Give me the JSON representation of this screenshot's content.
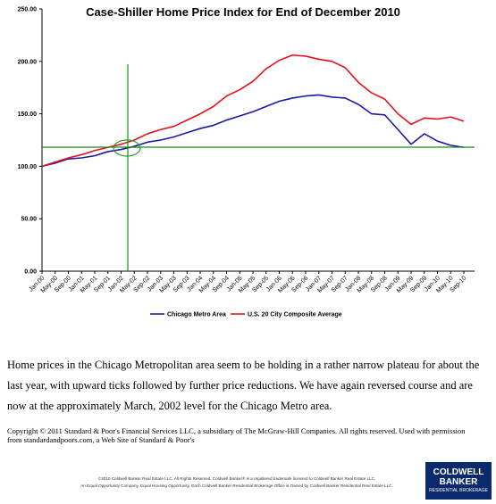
{
  "chart_data": {
    "type": "line",
    "title": "Case-Shiller Home Price Index for End of December 2010",
    "categories": [
      "Jan-00",
      "May-00",
      "Sep-00",
      "Jan-01",
      "May-01",
      "Sep-01",
      "Jan-02",
      "May-02",
      "Sep-02",
      "Jan-03",
      "May-03",
      "Sep-03",
      "Jan-04",
      "May-04",
      "Sep-04",
      "Jan-05",
      "May-05",
      "Sep-05",
      "Jan-06",
      "May-06",
      "Sep-06",
      "Jan-07",
      "May-07",
      "Sep-07",
      "Jan-08",
      "May-08",
      "Sep-08",
      "Jan-09",
      "May-09",
      "Sep-09",
      "Jan-10",
      "May-10",
      "Sep-10"
    ],
    "series": [
      {
        "name": "Chicago Metro Area",
        "color": "#1a1aa6",
        "values": [
          100,
          103,
          107,
          108,
          110,
          114,
          116,
          119,
          123,
          125,
          128,
          132,
          136,
          139,
          144,
          148,
          152,
          157,
          162,
          165,
          167,
          168,
          166,
          165,
          159,
          150,
          149,
          135,
          121,
          131,
          124,
          120,
          118
        ]
      },
      {
        "name": "U.S. 20 City Composite Average",
        "color": "#e8101c",
        "values": [
          100,
          104,
          108,
          111,
          115,
          118,
          121,
          125,
          131,
          135,
          138,
          144,
          150,
          157,
          167,
          173,
          181,
          193,
          201,
          206,
          205,
          202,
          200,
          194,
          180,
          170,
          164,
          150,
          140,
          146,
          145,
          147,
          143
        ]
      }
    ],
    "ylim": [
      0,
      250
    ],
    "yticks": [
      {
        "value": 0,
        "label": "0.00"
      },
      {
        "value": 50,
        "label": "50.00"
      },
      {
        "value": 100,
        "label": "100.00"
      },
      {
        "value": 150,
        "label": "150.00"
      },
      {
        "value": 200,
        "label": "200.00"
      },
      {
        "value": 250,
        "label": "250.00"
      }
    ]
  },
  "text": {
    "paragraph": "Home prices in the Chicago Metropolitan area seem to be holding in a rather narrow plateau for about the last year, with upward ticks followed by further price reductions.  We have again reversed course and are now at the approximately March, 2002 level for the Chicago Metro area.",
    "copyright": "Copyright © 2011 Standard & Poor's Financial Services LLC, a subsidiary of The McGraw-Hill Companies.  All rights reserved.  Used with permission from standardandpoors.com, a Web Site of Standard & Poor's",
    "footer_1": "©2010 Coldwell Banker Real Estate LLC. All Rights Reserved. Coldwell Banker® is a registered trademark licensed to Coldwell Banker Real Estate LLC.",
    "footer_2": "An Equal Opportunity Company. Equal Housing Opportunity. Each Coldwell Banker Residential Brokerage Office is Owned by Coldwell Banker Residential Real Estate LLC.",
    "logo_1": "COLDWELL",
    "logo_2": "BANKER",
    "logo_3": "RESIDENTIAL BROKERAGE"
  }
}
